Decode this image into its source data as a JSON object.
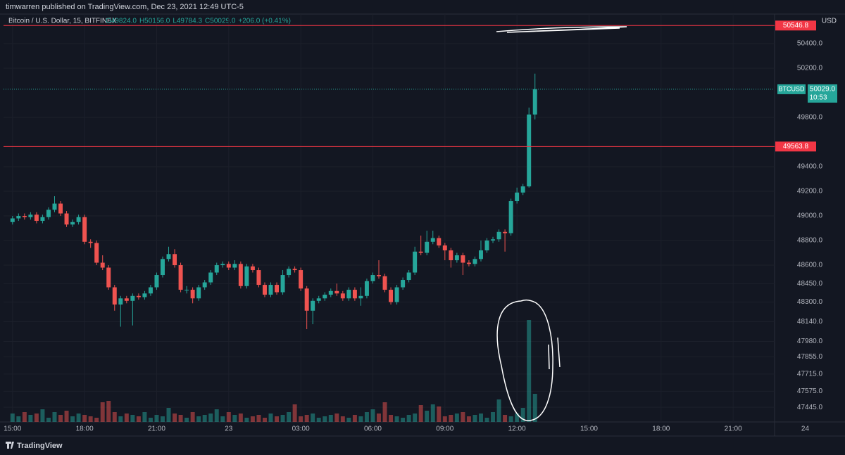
{
  "header": {
    "text": "timwarren published on TradingView.com, Dec 23, 2021 12:49 UTC-5"
  },
  "footer": {
    "brand": "TradingView"
  },
  "chart_data": {
    "type": "candlestick",
    "symbol": "Bitcoin / U.S. Dollar, 15, BITFINEX",
    "legend": {
      "open": "O49824.0",
      "high": "H50156.0",
      "low": "L49784.3",
      "close": "C50029.0",
      "change": "+206.0 (+0.41%)"
    },
    "currency": "USD",
    "up_color": "#26a69a",
    "down_color": "#ef5350",
    "xlim": [
      -1.5,
      126.9
    ],
    "xticks": [
      {
        "value": 0,
        "label": "15:00"
      },
      {
        "value": 12,
        "label": "18:00"
      },
      {
        "value": 24,
        "label": "21:00"
      },
      {
        "value": 36,
        "label": "23"
      },
      {
        "value": 48,
        "label": "03:00"
      },
      {
        "value": 60,
        "label": "06:00"
      },
      {
        "value": 72,
        "label": "09:00"
      },
      {
        "value": 84,
        "label": "12:00"
      },
      {
        "value": 96,
        "label": "15:00"
      },
      {
        "value": 108,
        "label": "18:00"
      },
      {
        "value": 120,
        "label": "21:00"
      },
      {
        "value": 132,
        "label": "24"
      }
    ],
    "ylim": [
      47326,
      50640
    ],
    "yticks": [
      {
        "value": 50400,
        "label": "50400.0"
      },
      {
        "value": 50200,
        "label": "50200.0"
      },
      {
        "value": 49800,
        "label": "49800.0"
      },
      {
        "value": 49400,
        "label": "49400.0"
      },
      {
        "value": 49200,
        "label": "49200.0"
      },
      {
        "value": 49000,
        "label": "49000.0"
      },
      {
        "value": 48800,
        "label": "48800.0"
      },
      {
        "value": 48600,
        "label": "48600.0"
      },
      {
        "value": 48450,
        "label": "48450.0"
      },
      {
        "value": 48300,
        "label": "48300.0"
      },
      {
        "value": 48140,
        "label": "48140.0"
      },
      {
        "value": 47980,
        "label": "47980.0"
      },
      {
        "value": 47855,
        "label": "47855.0"
      },
      {
        "value": 47715,
        "label": "47715.0"
      },
      {
        "value": 47575,
        "label": "47575.0"
      },
      {
        "value": 47445,
        "label": "47445.0"
      }
    ],
    "grid": true,
    "hlines": [
      {
        "value": 50546.8,
        "color": "#f23645"
      },
      {
        "value": 49563.8,
        "color": "#f23645"
      }
    ],
    "last_price": {
      "value": 50029,
      "label": "50029.0",
      "symbol": "BTCUSD",
      "countdown": "10:53",
      "color": "#26a69a"
    },
    "open": [
      48950,
      48980,
      49000,
      48990,
      49010,
      48960,
      48990,
      49050,
      49100,
      49020,
      48930,
      48950,
      48990,
      48790,
      48780,
      48620,
      48580,
      48420,
      48280,
      48330,
      48310,
      48350,
      48340,
      48370,
      48420,
      48520,
      48650,
      48690,
      48600,
      48400,
      48400,
      48330,
      48420,
      48460,
      48540,
      48600,
      48610,
      48580,
      48610,
      48430,
      48590,
      48560,
      48440,
      48360,
      48440,
      48380,
      48520,
      48570,
      48560,
      48410,
      48230,
      48310,
      48330,
      48360,
      48390,
      48370,
      48330,
      48400,
      48330,
      48350,
      48470,
      48520,
      48510,
      48400,
      48300,
      48420,
      48480,
      48540,
      48710,
      48700,
      48790,
      48820,
      48760,
      48720,
      48640,
      48680,
      48620,
      48610,
      48650,
      48720,
      48800,
      48810,
      48870,
      48860,
      49120,
      49190,
      49240,
      49824
    ],
    "high": [
      49000,
      49020,
      49020,
      49030,
      49030,
      49010,
      49070,
      49160,
      49120,
      49040,
      48970,
      49010,
      49010,
      48810,
      48800,
      48680,
      48600,
      48440,
      48350,
      48350,
      48370,
      48370,
      48390,
      48440,
      48540,
      48670,
      48750,
      48730,
      48620,
      48430,
      48420,
      48440,
      48480,
      48560,
      48620,
      48630,
      48630,
      48640,
      48630,
      48610,
      48610,
      48580,
      48460,
      48460,
      48460,
      48560,
      48590,
      48590,
      48580,
      48430,
      48330,
      48350,
      48380,
      48410,
      48450,
      48390,
      48420,
      48420,
      48420,
      48490,
      48540,
      48640,
      48530,
      48420,
      48440,
      48500,
      48560,
      48750,
      48840,
      48880,
      48880,
      48840,
      48780,
      48740,
      48700,
      48700,
      48640,
      48670,
      48800,
      48820,
      48830,
      48890,
      48890,
      49140,
      49230,
      49260,
      49880,
      50156
    ],
    "low": [
      48930,
      48960,
      48970,
      48970,
      48940,
      48940,
      48970,
      49030,
      49000,
      48910,
      48910,
      48930,
      48770,
      48740,
      48600,
      48560,
      48400,
      48230,
      48100,
      48290,
      48110,
      48320,
      48320,
      48350,
      48400,
      48500,
      48630,
      48580,
      48380,
      48370,
      48290,
      48310,
      48400,
      48440,
      48520,
      48580,
      48560,
      48560,
      48410,
      48410,
      48540,
      48420,
      48340,
      48340,
      48360,
      48360,
      48500,
      48540,
      48390,
      48080,
      48120,
      48290,
      48310,
      48340,
      48350,
      48310,
      48310,
      48310,
      48270,
      48330,
      48450,
      48490,
      48380,
      48280,
      48280,
      48400,
      48460,
      48520,
      48680,
      48680,
      48770,
      48740,
      48640,
      48580,
      48620,
      48520,
      48590,
      48590,
      48630,
      48700,
      48780,
      48790,
      48710,
      48840,
      49100,
      49170,
      49230,
      49784.3
    ],
    "close": [
      48980,
      49000,
      48990,
      49010,
      48960,
      48990,
      49050,
      49100,
      49020,
      48930,
      48950,
      48990,
      48790,
      48780,
      48620,
      48580,
      48420,
      48280,
      48330,
      48310,
      48350,
      48340,
      48370,
      48420,
      48520,
      48650,
      48690,
      48600,
      48400,
      48400,
      48330,
      48420,
      48460,
      48540,
      48600,
      48610,
      48580,
      48610,
      48430,
      48590,
      48560,
      48440,
      48360,
      48440,
      48380,
      48520,
      48570,
      48560,
      48410,
      48230,
      48310,
      48330,
      48360,
      48390,
      48370,
      48330,
      48400,
      48330,
      48350,
      48470,
      48520,
      48510,
      48400,
      48300,
      48420,
      48480,
      48540,
      48710,
      48700,
      48790,
      48820,
      48760,
      48720,
      48640,
      48680,
      48620,
      48610,
      48650,
      48720,
      48800,
      48810,
      48870,
      48860,
      49120,
      49190,
      49240,
      49824,
      50029
    ],
    "volume": [
      12,
      8,
      14,
      10,
      12,
      18,
      6,
      14,
      10,
      16,
      8,
      12,
      10,
      8,
      6,
      28,
      30,
      14,
      8,
      12,
      10,
      8,
      14,
      6,
      10,
      8,
      20,
      12,
      10,
      6,
      14,
      8,
      10,
      12,
      18,
      8,
      14,
      10,
      12,
      6,
      8,
      10,
      6,
      12,
      8,
      10,
      14,
      25,
      8,
      10,
      12,
      6,
      8,
      10,
      12,
      8,
      6,
      10,
      8,
      14,
      18,
      12,
      28,
      10,
      8,
      6,
      10,
      12,
      24,
      16,
      25,
      22,
      8,
      10,
      12,
      14,
      8,
      10,
      12,
      6,
      14,
      32,
      10,
      8,
      12,
      20,
      145,
      40
    ]
  }
}
